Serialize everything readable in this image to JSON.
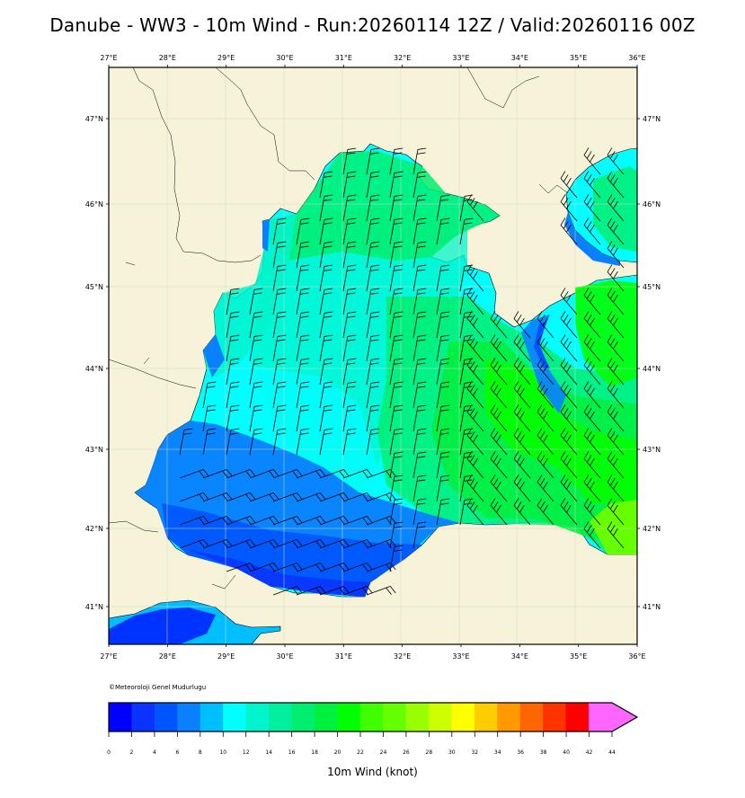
{
  "title": "Danube - WW3 - 10m Wind - Run:20260114 12Z / Valid:20260116 00Z",
  "map": {
    "lon_labels": [
      "27°E",
      "28°E",
      "29°E",
      "30°E",
      "31°E",
      "32°E",
      "33°E",
      "34°E",
      "35°E",
      "36°E"
    ],
    "lat_labels": [
      "47°N",
      "46°N",
      "45°N",
      "44°N",
      "43°N",
      "42°N",
      "41°N"
    ],
    "lon_range": [
      27,
      36
    ],
    "lat_range": [
      40.55,
      47.62
    ],
    "colors": {
      "land": "#f6f3d8",
      "coast": "#000000",
      "grid": "#d6d6c8"
    }
  },
  "copyright": "©Meteoroloji Genel Mudurlugu",
  "colorbar": {
    "label": "10m Wind (knot)",
    "ticks": [
      "0",
      "2",
      "4",
      "6",
      "8",
      "10",
      "12",
      "14",
      "16",
      "18",
      "20",
      "22",
      "24",
      "26",
      "28",
      "30",
      "32",
      "34",
      "36",
      "38",
      "40",
      "42",
      "44"
    ],
    "colors": [
      "#0000ff",
      "#0a33ff",
      "#0055ff",
      "#0a80ff",
      "#00bfff",
      "#00ffff",
      "#00f5cc",
      "#00f0a0",
      "#00ee70",
      "#00f040",
      "#00ff00",
      "#40ff00",
      "#66ff00",
      "#99ff00",
      "#ccff00",
      "#ffff00",
      "#ffcc00",
      "#ff9900",
      "#ff6600",
      "#ff3300",
      "#ff0000",
      "#ff66ff"
    ]
  }
}
